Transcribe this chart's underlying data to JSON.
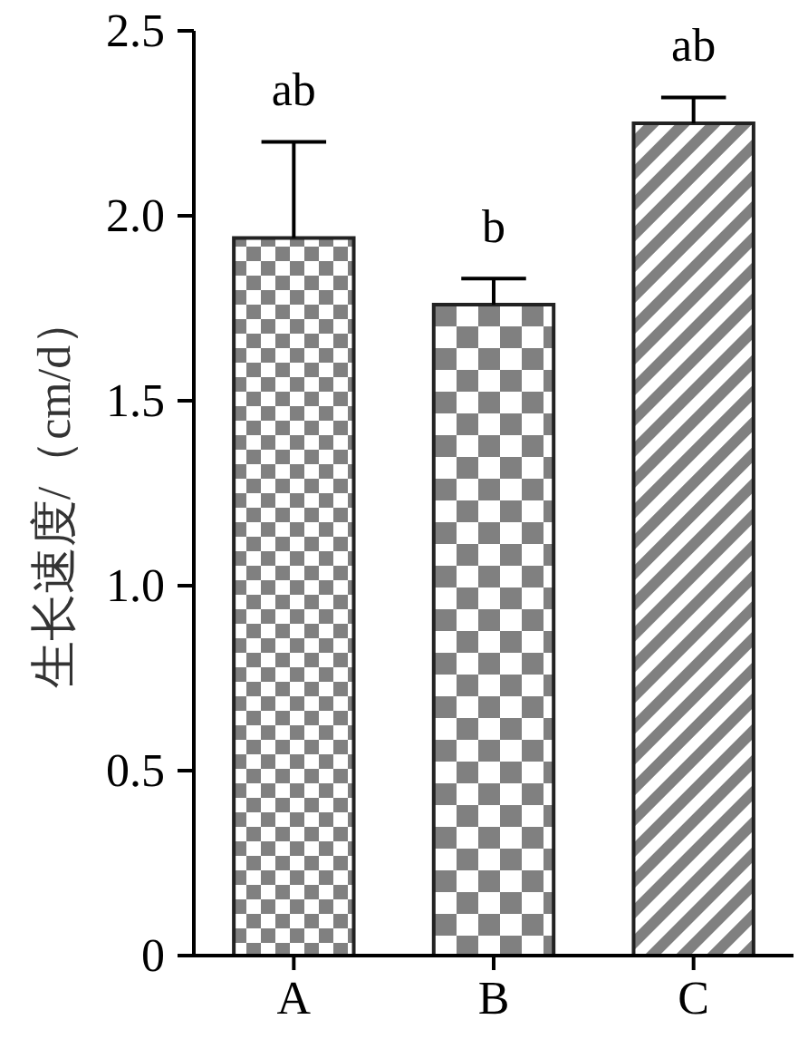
{
  "chart_data": {
    "type": "bar",
    "ylabel": "生长速度/（cm/d）",
    "categories": [
      "A",
      "B",
      "C"
    ],
    "values": [
      1.94,
      1.76,
      2.25
    ],
    "errors": [
      [
        1.94,
        2.2
      ],
      [
        1.76,
        1.83
      ],
      [
        2.25,
        2.32
      ]
    ],
    "colors": [
      "#808080",
      "#808080",
      "#808080"
    ],
    "ylim": [
      0,
      2.5
    ],
    "yticks": [
      0,
      0.5,
      {
        "value": 1,
        "label": "1.0"
      },
      1.5,
      {
        "value": 2,
        "label": "2.0"
      },
      2.5
    ],
    "annotations": [
      {
        "text": "ab",
        "x": "A",
        "y": 2.2
      },
      {
        "text": "b",
        "x": "B",
        "y": 1.83
      },
      {
        "text": "ab",
        "x": "C",
        "y": 2.32
      }
    ]
  }
}
